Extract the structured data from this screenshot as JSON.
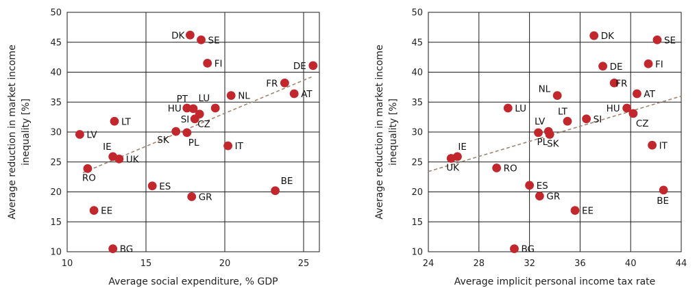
{
  "chart_data": [
    {
      "type": "scatter",
      "xlabel": "Average social expenditure, % GDP",
      "ylabel": "Average reduction in market income inequality [%]",
      "xlim": [
        10,
        26
      ],
      "ylim": [
        10,
        50
      ],
      "xticks": [
        10,
        15,
        20,
        25
      ],
      "yticks": [
        10,
        15,
        20,
        25,
        30,
        35,
        40,
        45,
        50
      ],
      "grid": true,
      "trendline": [
        [
          11,
          23.2
        ],
        [
          25.5,
          39.2
        ]
      ],
      "points": [
        {
          "label": "DK",
          "x": 17.8,
          "y": 46.2
        },
        {
          "label": "SE",
          "x": 18.5,
          "y": 45.4
        },
        {
          "label": "FI",
          "x": 18.9,
          "y": 41.5
        },
        {
          "label": "DE",
          "x": 25.6,
          "y": 41.1
        },
        {
          "label": "FR",
          "x": 23.8,
          "y": 38.2
        },
        {
          "label": "AT",
          "x": 24.4,
          "y": 36.4
        },
        {
          "label": "NL",
          "x": 20.4,
          "y": 36.1
        },
        {
          "label": "PT",
          "x": 18.0,
          "y": 33.9
        },
        {
          "label": "LU",
          "x": 19.4,
          "y": 34.0
        },
        {
          "label": "HU",
          "x": 17.6,
          "y": 34.0
        },
        {
          "label": "CZ",
          "x": 18.4,
          "y": 33.0
        },
        {
          "label": "SI",
          "x": 18.1,
          "y": 32.2
        },
        {
          "label": "LT",
          "x": 13.0,
          "y": 31.8
        },
        {
          "label": "SK",
          "x": 16.9,
          "y": 30.1
        },
        {
          "label": "PL",
          "x": 17.6,
          "y": 29.9
        },
        {
          "label": "LV",
          "x": 10.8,
          "y": 29.6
        },
        {
          "label": "IT",
          "x": 20.2,
          "y": 27.7
        },
        {
          "label": "IE",
          "x": 12.9,
          "y": 25.9
        },
        {
          "label": "UK",
          "x": 13.3,
          "y": 25.5
        },
        {
          "label": "RO",
          "x": 11.3,
          "y": 23.9
        },
        {
          "label": "ES",
          "x": 15.4,
          "y": 21.0
        },
        {
          "label": "BE",
          "x": 23.2,
          "y": 20.2
        },
        {
          "label": "GR",
          "x": 17.9,
          "y": 19.2
        },
        {
          "label": "EE",
          "x": 11.7,
          "y": 16.9
        },
        {
          "label": "BG",
          "x": 12.9,
          "y": 10.5
        }
      ]
    },
    {
      "type": "scatter",
      "xlabel": "Average implicit personal income tax rate",
      "ylabel": "Average reduction in market income inequality [%]",
      "xlim": [
        24,
        44
      ],
      "ylim": [
        10,
        50
      ],
      "xticks": [
        24,
        28,
        32,
        36,
        40,
        44
      ],
      "yticks": [
        10,
        15,
        20,
        25,
        30,
        35,
        40,
        45,
        50
      ],
      "grid": true,
      "trendline": [
        [
          24,
          23.4
        ],
        [
          44,
          36.0
        ]
      ],
      "points": [
        {
          "label": "DK",
          "x": 37.1,
          "y": 46.1
        },
        {
          "label": "SE",
          "x": 42.1,
          "y": 45.4
        },
        {
          "label": "FI",
          "x": 41.4,
          "y": 41.4
        },
        {
          "label": "DE",
          "x": 37.8,
          "y": 41.0
        },
        {
          "label": "FR",
          "x": 38.7,
          "y": 38.2
        },
        {
          "label": "AT",
          "x": 40.5,
          "y": 36.4
        },
        {
          "label": "NL",
          "x": 34.2,
          "y": 36.1
        },
        {
          "label": "HU",
          "x": 39.7,
          "y": 34.0
        },
        {
          "label": "LU",
          "x": 30.3,
          "y": 34.0
        },
        {
          "label": "CZ",
          "x": 40.2,
          "y": 33.1
        },
        {
          "label": "SI",
          "x": 36.5,
          "y": 32.2
        },
        {
          "label": "LT",
          "x": 35.0,
          "y": 31.8
        },
        {
          "label": "LV",
          "x": 33.5,
          "y": 30.1
        },
        {
          "label": "PL",
          "x": 32.7,
          "y": 29.9
        },
        {
          "label": "SK",
          "x": 33.6,
          "y": 29.6
        },
        {
          "label": "IT",
          "x": 41.7,
          "y": 27.8
        },
        {
          "label": "IE",
          "x": 26.3,
          "y": 25.9
        },
        {
          "label": "UK",
          "x": 25.8,
          "y": 25.6
        },
        {
          "label": "RO",
          "x": 29.4,
          "y": 24.0
        },
        {
          "label": "ES",
          "x": 32.0,
          "y": 21.1
        },
        {
          "label": "BE",
          "x": 42.6,
          "y": 20.3
        },
        {
          "label": "GR",
          "x": 32.8,
          "y": 19.3
        },
        {
          "label": "EE",
          "x": 35.6,
          "y": 16.9
        },
        {
          "label": "BG",
          "x": 30.8,
          "y": 10.5
        }
      ]
    }
  ]
}
